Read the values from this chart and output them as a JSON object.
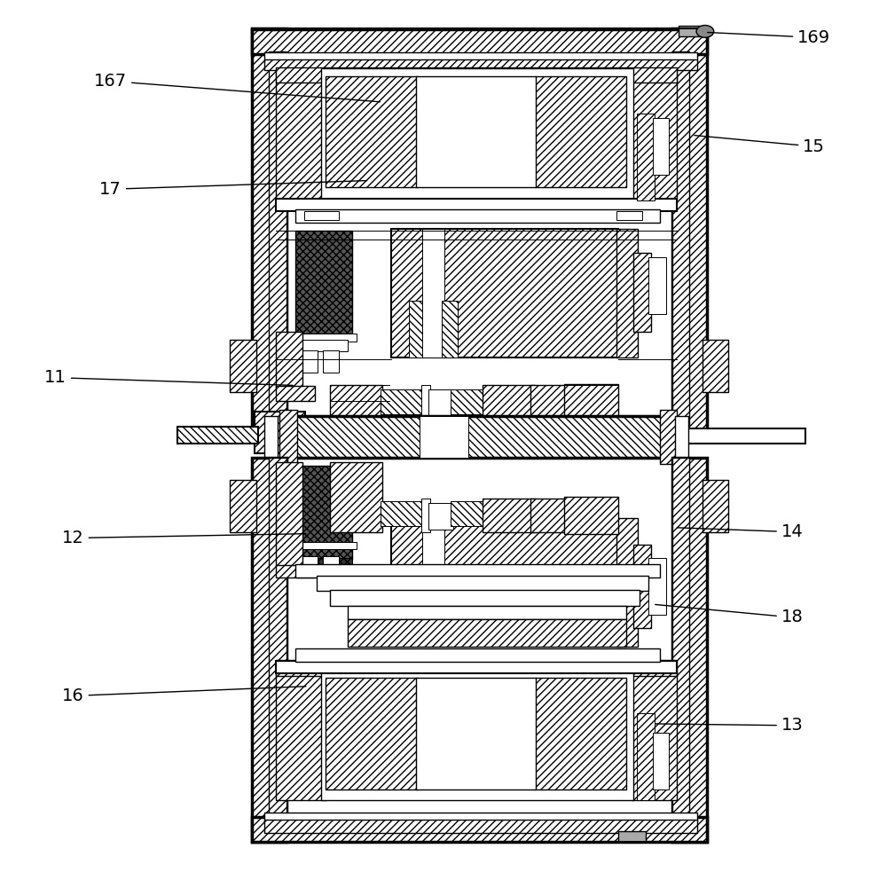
{
  "bg_color": "#ffffff",
  "line_color": "#000000",
  "figsize": [
    10.0,
    9.83
  ],
  "dpi": 100,
  "labels": [
    {
      "text": "169",
      "pt": [
        0.8,
        0.963
      ],
      "txt": [
        0.925,
        0.957
      ]
    },
    {
      "text": "15",
      "pt": [
        0.785,
        0.845
      ],
      "txt": [
        0.925,
        0.832
      ]
    },
    {
      "text": "167",
      "pt": [
        0.43,
        0.883
      ],
      "txt": [
        0.118,
        0.907
      ]
    },
    {
      "text": "17",
      "pt": [
        0.415,
        0.793
      ],
      "txt": [
        0.118,
        0.783
      ]
    },
    {
      "text": "11",
      "pt": [
        0.33,
        0.558
      ],
      "txt": [
        0.055,
        0.567
      ]
    },
    {
      "text": "12",
      "pt": [
        0.345,
        0.388
      ],
      "txt": [
        0.075,
        0.383
      ]
    },
    {
      "text": "16",
      "pt": [
        0.345,
        0.213
      ],
      "txt": [
        0.075,
        0.202
      ]
    },
    {
      "text": "14",
      "pt": [
        0.765,
        0.395
      ],
      "txt": [
        0.9,
        0.39
      ]
    },
    {
      "text": "18",
      "pt": [
        0.74,
        0.307
      ],
      "txt": [
        0.9,
        0.292
      ]
    },
    {
      "text": "13",
      "pt": [
        0.74,
        0.17
      ],
      "txt": [
        0.9,
        0.168
      ]
    }
  ]
}
